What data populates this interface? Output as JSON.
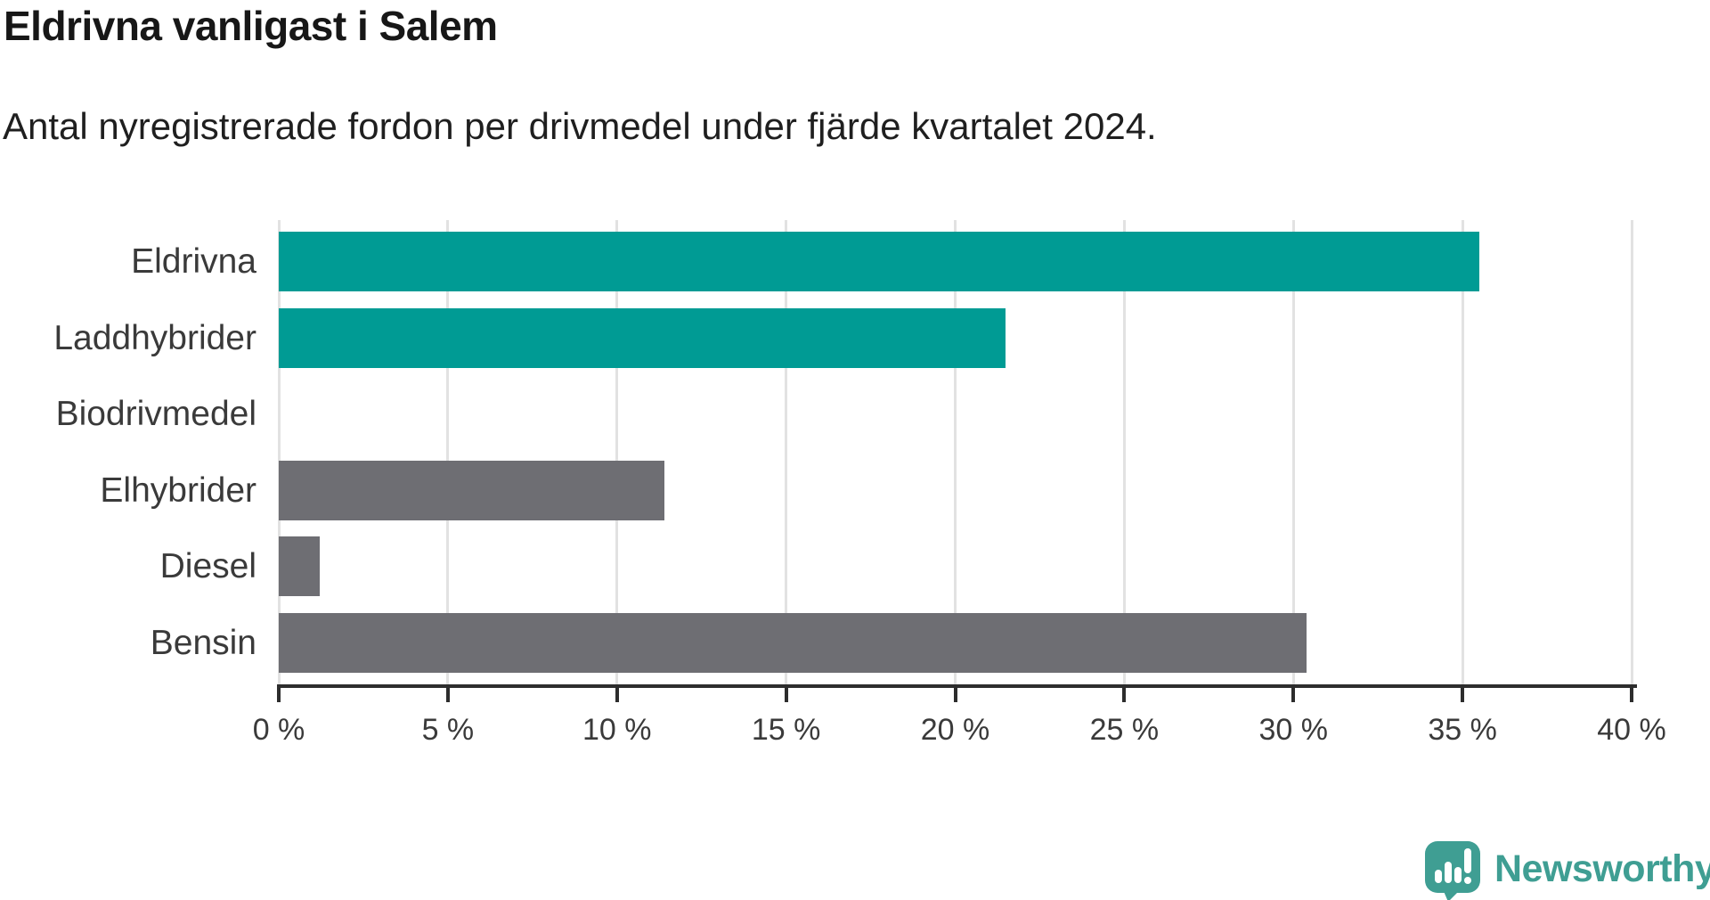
{
  "title": "Eldrivna vanligast i Salem",
  "subtitle": "Antal nyregistrerade fordon per drivmedel under fjärde kvartalet 2024.",
  "chart_data": {
    "type": "bar",
    "orientation": "horizontal",
    "title": "Eldrivna vanligast i Salem",
    "subtitle": "Antal nyregistrerade fordon per drivmedel under fjärde kvartalet 2024.",
    "categories": [
      "Eldrivna",
      "Laddhybrider",
      "Biodrivmedel",
      "Elhybrider",
      "Diesel",
      "Bensin"
    ],
    "values": [
      35.5,
      21.5,
      0,
      11.4,
      1.2,
      30.4
    ],
    "unit": "%",
    "xlim": [
      0,
      40
    ],
    "x_ticks": [
      0,
      5,
      10,
      15,
      20,
      25,
      30,
      35,
      40
    ],
    "x_tick_labels": [
      "0 %",
      "5 %",
      "10 %",
      "15 %",
      "20 %",
      "25 %",
      "30 %",
      "35 %",
      "40 %"
    ],
    "bar_colors": [
      "#009B94",
      "#009B94",
      "#6E6E73",
      "#6E6E73",
      "#6E6E73",
      "#6E6E73"
    ],
    "highlight_color": "#009B94",
    "default_color": "#6E6E73",
    "gridline_color": "#E2E2E2",
    "axis_color": "#2D2D2D",
    "grid": true,
    "legend": false
  },
  "branding": {
    "logo_text": "Newsworthy",
    "logo_color": "#3F9E93",
    "logo_icon": "newsworthy-chart-bubble-icon"
  }
}
